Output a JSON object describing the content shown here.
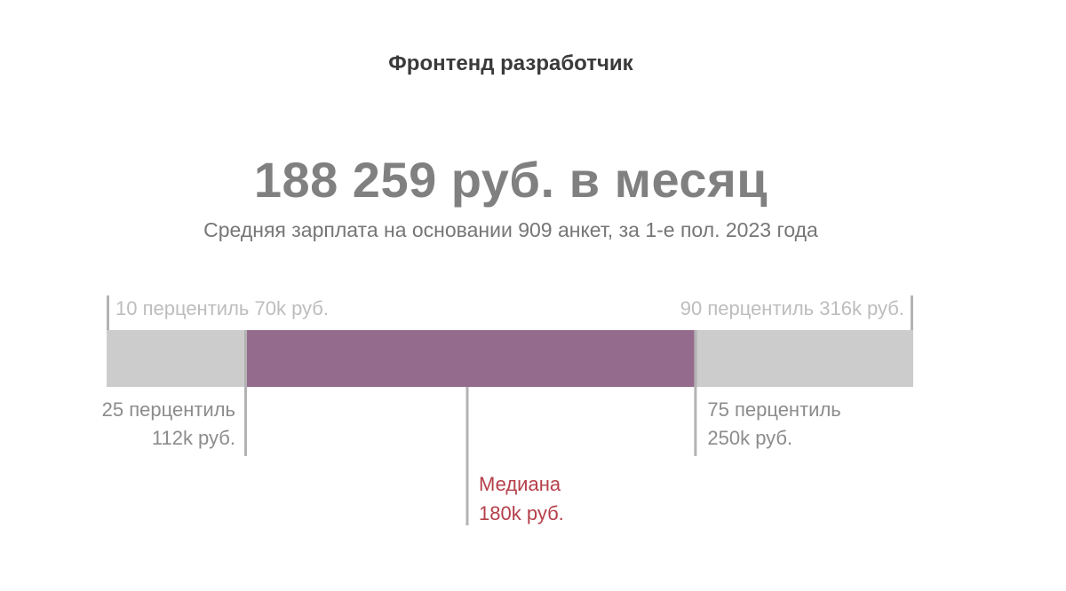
{
  "header": {
    "job_title": "Фронтенд разработчик",
    "salary_headline": "188 259 руб. в месяц",
    "subtitle": "Средняя зарплата на основании 909 анкет, за 1-е пол. 2023 года"
  },
  "colors": {
    "outer_range": "#cccccc",
    "inner_range": "#946b8c",
    "marker_line": "#b3b3b3",
    "percentile_text": "#8c8c8c",
    "outer_text": "#bdbdbd",
    "median_text": "#b5404a"
  },
  "chart_data": {
    "type": "box-range",
    "unit": "k руб.",
    "p10": 70,
    "p25": 112,
    "median": 180,
    "p75": 250,
    "p90": 316,
    "labels": {
      "p10": "10 перцентиль 70k руб.",
      "p90": "90 перцентиль 316k руб.",
      "p25_line1": "25 перцентиль",
      "p25_line2": "112k руб.",
      "p75_line1": "75 перцентиль",
      "p75_line2": "250k руб.",
      "median_line1": "Медиана",
      "median_line2": "180k руб."
    }
  }
}
